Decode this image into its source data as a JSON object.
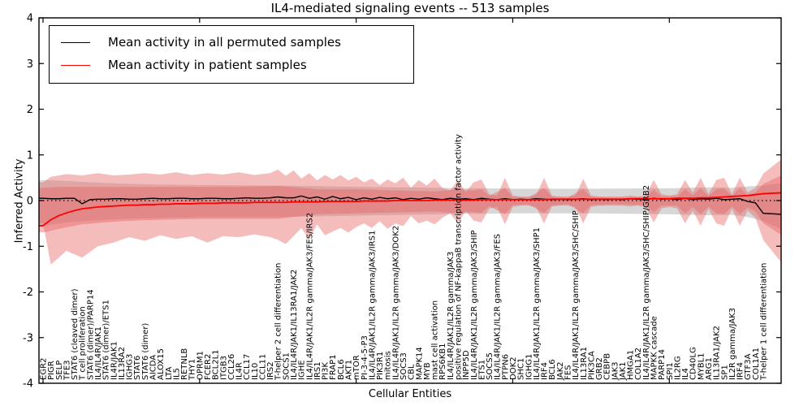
{
  "figure": {
    "title": "IL4-mediated signaling events -- 513 samples",
    "x_axis_label": "Cellular Entities",
    "y_axis_label": "Inferred Activity",
    "y_tick_labels": [
      "4",
      "3",
      "2",
      "1",
      "0",
      "-1",
      "-2",
      "-3",
      "-4"
    ],
    "legend": {
      "entries": [
        {
          "label": "Mean activity in all permuted samples",
          "color": "#000000"
        },
        {
          "label": "Mean activity in patient samples",
          "color": "#ff0000"
        }
      ]
    },
    "colors": {
      "permuted_line": "#000000",
      "patient_line": "#ff0000",
      "zero_line": "#000000",
      "red_band": "#e85f5f",
      "gray_band": "#b0b0b0",
      "axis": "#000000"
    }
  },
  "chart_data": {
    "type": "line",
    "title": "IL4-mediated signaling events -- 513 samples",
    "xlabel": "Cellular Entities",
    "ylabel": "Inferred Activity",
    "ylim": [
      -4,
      4
    ],
    "grid": false,
    "legend_position": "upper left",
    "zero_reference_line": 0,
    "categories": [
      "EGR2",
      "PIGR",
      "SELP",
      "TFE3",
      "STAT6 (cleaved dimer)",
      "T cell proliferation",
      "STAT6 (dimer)/PARP14",
      "IL4/IL4R/JAK1",
      "STAT6 (dimer)/ETS1",
      "IL4R/JAK1",
      "IL13RA2",
      "IGHG3",
      "STAT6",
      "STAT6 (dimer)",
      "AICDA",
      "ALOX15",
      "LTA",
      "IL5",
      "RETNLB",
      "THY1",
      "OPRM1",
      "FCER2",
      "BCL2L1",
      "ITGB3",
      "CCL26",
      "IL4R",
      "CCL17",
      "IL10",
      "CCL11",
      "IRS2",
      "T-helper 2 cell differentiation",
      "SOCS1",
      "IL4/IL4R/JAK1/IL13RA1/JAK2",
      "IGHE",
      "IL4/IL4R/JAK1/IL2R gamma/JAK3/FES/IRS2",
      "IRS1",
      "PI3K",
      "FRAP1",
      "BCL6",
      "AKT1",
      "mTOR",
      "PI-3-4-5-P3",
      "IL4/IL4R/JAK1/IL2R gamma/JAK3/IRS1",
      "PIK3R1",
      "mitosis",
      "IL4/IL4R/JAK1/IL2R gamma/JAK3/DOK2",
      "SOCS3",
      "CBL",
      "MAPK14",
      "MYB",
      "mast cell activation",
      "RPS6KB1",
      "IL4/IL4R/JAK1/IL2R gamma/JAK3",
      "positive regulation of NF-kappaB transcription factor activity",
      "INPP5D",
      "IL4/IL4R/JAK1/IL2R gamma/JAK3/SHIP",
      "ETS1",
      "SOCS5",
      "IL4/IL4R/JAK1/IL2R gamma/JAK3/FES",
      "PTPN6",
      "DOK2",
      "SHC1",
      "IGHG1",
      "IL4/IL4R/JAK1/IL2R gamma/JAK3/SHP1",
      "IRF4",
      "BCL6",
      "JAK2",
      "FES",
      "IL4/IL4R/JAK1/IL2R gamma/JAK3/SHC/SHIP",
      "IL13RA1",
      "PIK3CA",
      "GRB2",
      "CEBPB",
      "JAK3",
      "JAK1",
      "HMGA1",
      "COL1A2",
      "IL4/IL4R/JAK1/IL2R gamma/JAK3/SHC/SHIP/GRB2",
      "MAPKK cascade",
      "PARP14",
      "SPI1",
      "IL2RG",
      "IL4",
      "CD40LG",
      "MYBL1",
      "ARG1",
      "IL13RA1/JAK2",
      "SP1",
      "IL2R gamma/JAK3",
      "IRF4",
      "GTF3A",
      "COL1A1",
      "T-helper 1 cell differentiation"
    ],
    "series": [
      {
        "name": "Mean activity in all permuted samples",
        "color": "#000000",
        "values": [
          0.05,
          0.04,
          0.04,
          0.05,
          0.05,
          -0.07,
          0.02,
          0.03,
          0.03,
          0.04,
          0.04,
          0.03,
          0.03,
          0.04,
          0.05,
          0.04,
          0.04,
          0.05,
          0.05,
          0.04,
          0.04,
          0.05,
          0.05,
          0.04,
          0.04,
          0.05,
          0.06,
          0.05,
          0.05,
          0.06,
          0.08,
          0.06,
          0.06,
          0.1,
          0.05,
          0.08,
          0.03,
          0.09,
          0.04,
          0.07,
          0.02,
          0.06,
          0.03,
          0.07,
          0.04,
          0.06,
          0.02,
          0.05,
          0.03,
          0.06,
          0.04,
          0.02,
          0.05,
          0.03,
          0.04,
          0.02,
          0.05,
          0.03,
          0.02,
          0.04,
          0.02,
          0.03,
          0.02,
          0.04,
          0.03,
          0.02,
          0.03,
          0.02,
          0.03,
          0.04,
          0.02,
          0.03,
          0.02,
          0.03,
          0.02,
          0.04,
          0.03,
          0.02,
          0.05,
          0.03,
          0.04,
          0.02,
          0.05,
          0.02,
          0.04,
          0.03,
          0.05,
          0.02,
          0.03,
          0.04,
          -0.02,
          -0.05,
          -0.28,
          -0.3
        ]
      },
      {
        "name": "Mean activity in patient samples",
        "color": "#ff0000",
        "values": [
          -0.55,
          -0.42,
          -0.33,
          -0.27,
          -0.22,
          -0.18,
          -0.16,
          -0.14,
          -0.13,
          -0.12,
          -0.11,
          -0.1,
          -0.1,
          -0.09,
          -0.09,
          -0.08,
          -0.08,
          -0.07,
          -0.07,
          -0.07,
          -0.06,
          -0.06,
          -0.06,
          -0.05,
          -0.05,
          -0.05,
          -0.05,
          -0.04,
          -0.04,
          -0.04,
          -0.04,
          -0.04,
          -0.03,
          -0.03,
          -0.03,
          -0.03,
          -0.02,
          -0.02,
          -0.02,
          -0.02,
          -0.02,
          -0.01,
          -0.01,
          -0.01,
          -0.01,
          0.0,
          0.0,
          0.0,
          0.0,
          0.0,
          0.01,
          0.01,
          0.01,
          0.01,
          0.01,
          0.01,
          0.02,
          0.02,
          0.02,
          0.02,
          0.02,
          0.02,
          0.02,
          0.02,
          0.02,
          0.03,
          0.03,
          0.03,
          0.03,
          0.03,
          0.03,
          0.03,
          0.03,
          0.03,
          0.03,
          0.04,
          0.04,
          0.04,
          0.04,
          0.04,
          0.04,
          0.05,
          0.05,
          0.05,
          0.06,
          0.06,
          0.07,
          0.08,
          0.09,
          0.1,
          0.11,
          0.13,
          0.15,
          0.17
        ]
      }
    ],
    "bands": {
      "note": "keyframes are [index, upper, lower] in data units; last index 93 is the right plot edge",
      "red_outer_keyframes": [
        [
          0,
          0.4,
          -0.5
        ],
        [
          1,
          0.52,
          -1.4
        ],
        [
          3,
          0.58,
          -1.1
        ],
        [
          5,
          0.55,
          -1.25
        ],
        [
          7,
          0.6,
          -1.0
        ],
        [
          9,
          0.55,
          -0.92
        ],
        [
          11,
          0.57,
          -0.8
        ],
        [
          13,
          0.6,
          -0.88
        ],
        [
          15,
          0.57,
          -0.76
        ],
        [
          17,
          0.62,
          -0.84
        ],
        [
          19,
          0.56,
          -0.78
        ],
        [
          21,
          0.6,
          -0.92
        ],
        [
          23,
          0.57,
          -0.78
        ],
        [
          25,
          0.62,
          -0.8
        ],
        [
          27,
          0.56,
          -0.74
        ],
        [
          29,
          0.6,
          -0.8
        ],
        [
          30,
          0.68,
          -0.86
        ],
        [
          31,
          0.54,
          -0.95
        ],
        [
          32,
          0.66,
          -0.78
        ],
        [
          33,
          0.48,
          -0.6
        ],
        [
          34,
          0.6,
          -0.85
        ],
        [
          35,
          0.44,
          -0.52
        ],
        [
          36,
          0.56,
          -0.76
        ],
        [
          37,
          0.46,
          -0.68
        ],
        [
          38,
          0.56,
          -0.6
        ],
        [
          39,
          0.44,
          -0.7
        ],
        [
          40,
          0.52,
          -0.58
        ],
        [
          41,
          0.4,
          -0.5
        ],
        [
          42,
          0.48,
          -0.6
        ],
        [
          43,
          0.34,
          -0.45
        ],
        [
          44,
          0.46,
          -0.62
        ],
        [
          45,
          0.38,
          -0.5
        ],
        [
          46,
          0.5,
          -0.56
        ],
        [
          47,
          0.28,
          -0.34
        ],
        [
          48,
          0.45,
          -0.5
        ],
        [
          49,
          0.33,
          -0.44
        ],
        [
          50,
          0.48,
          -0.52
        ],
        [
          51,
          0.28,
          -0.38
        ],
        [
          52,
          0.22,
          -0.28
        ],
        [
          53,
          0.45,
          -0.5
        ],
        [
          54,
          0.18,
          -0.22
        ],
        [
          55,
          0.4,
          -0.44
        ],
        [
          56,
          0.46,
          -0.48
        ],
        [
          57,
          0.14,
          -0.17
        ],
        [
          58,
          0.11,
          -0.14
        ],
        [
          59,
          0.5,
          -0.52
        ],
        [
          60,
          0.11,
          -0.14
        ],
        [
          61,
          0.09,
          -0.11
        ],
        [
          62,
          0.09,
          -0.11
        ],
        [
          63,
          0.12,
          -0.14
        ],
        [
          64,
          0.5,
          -0.5
        ],
        [
          65,
          0.11,
          -0.13
        ],
        [
          66,
          0.09,
          -0.11
        ],
        [
          67,
          0.09,
          -0.11
        ],
        [
          68,
          0.11,
          -0.13
        ],
        [
          69,
          0.48,
          -0.5
        ],
        [
          70,
          0.11,
          -0.14
        ],
        [
          71,
          0.09,
          -0.11
        ],
        [
          72,
          0.09,
          -0.11
        ],
        [
          73,
          0.09,
          -0.11
        ],
        [
          74,
          0.09,
          -0.11
        ],
        [
          75,
          0.11,
          -0.13
        ],
        [
          76,
          0.09,
          -0.11
        ],
        [
          77,
          0.11,
          -0.14
        ],
        [
          78,
          0.45,
          -0.48
        ],
        [
          79,
          0.14,
          -0.17
        ],
        [
          80,
          0.11,
          -0.14
        ],
        [
          81,
          0.14,
          -0.17
        ],
        [
          82,
          0.45,
          -0.5
        ],
        [
          83,
          0.18,
          -0.22
        ],
        [
          84,
          0.5,
          -0.55
        ],
        [
          85,
          0.14,
          -0.18
        ],
        [
          86,
          0.45,
          -0.5
        ],
        [
          87,
          0.5,
          -0.55
        ],
        [
          88,
          0.14,
          -0.18
        ],
        [
          89,
          0.5,
          -0.55
        ],
        [
          90,
          0.18,
          -0.22
        ],
        [
          91,
          0.28,
          -0.38
        ],
        [
          93,
          0.9,
          -1.35
        ]
      ],
      "red_inner_keyframes": [
        [
          0,
          0.28,
          -0.7
        ],
        [
          2,
          0.3,
          -0.62
        ],
        [
          5,
          0.3,
          -0.52
        ],
        [
          10,
          0.3,
          -0.45
        ],
        [
          15,
          0.3,
          -0.42
        ],
        [
          20,
          0.3,
          -0.4
        ],
        [
          25,
          0.3,
          -0.4
        ],
        [
          30,
          0.32,
          -0.4
        ],
        [
          33,
          0.28,
          -0.34
        ],
        [
          35,
          0.25,
          -0.3
        ],
        [
          40,
          0.25,
          -0.28
        ],
        [
          45,
          0.22,
          -0.26
        ],
        [
          50,
          0.2,
          -0.24
        ],
        [
          53,
          0.25,
          -0.28
        ],
        [
          55,
          0.22,
          -0.25
        ],
        [
          56,
          0.25,
          -0.27
        ],
        [
          57,
          0.1,
          -0.12
        ],
        [
          59,
          0.28,
          -0.3
        ],
        [
          60,
          0.08,
          -0.1
        ],
        [
          62,
          0.06,
          -0.08
        ],
        [
          64,
          0.28,
          -0.28
        ],
        [
          65,
          0.08,
          -0.1
        ],
        [
          67,
          0.06,
          -0.08
        ],
        [
          69,
          0.26,
          -0.28
        ],
        [
          70,
          0.08,
          -0.1
        ],
        [
          73,
          0.06,
          -0.08
        ],
        [
          75,
          0.07,
          -0.09
        ],
        [
          77,
          0.08,
          -0.1
        ],
        [
          78,
          0.24,
          -0.26
        ],
        [
          79,
          0.09,
          -0.11
        ],
        [
          81,
          0.09,
          -0.11
        ],
        [
          82,
          0.25,
          -0.28
        ],
        [
          83,
          0.12,
          -0.14
        ],
        [
          84,
          0.27,
          -0.3
        ],
        [
          85,
          0.1,
          -0.13
        ],
        [
          86,
          0.25,
          -0.28
        ],
        [
          87,
          0.27,
          -0.3
        ],
        [
          88,
          0.1,
          -0.13
        ],
        [
          89,
          0.28,
          -0.3
        ],
        [
          90,
          0.12,
          -0.15
        ],
        [
          91,
          0.18,
          -0.24
        ],
        [
          93,
          0.55,
          -0.75
        ]
      ],
      "gray_keyframes": [
        [
          0,
          0.45,
          -0.55
        ],
        [
          3,
          0.43,
          -0.48
        ],
        [
          6,
          0.4,
          -0.44
        ],
        [
          10,
          0.37,
          -0.4
        ],
        [
          15,
          0.35,
          -0.38
        ],
        [
          20,
          0.34,
          -0.36
        ],
        [
          30,
          0.33,
          -0.36
        ],
        [
          40,
          0.3,
          -0.33
        ],
        [
          50,
          0.28,
          -0.3
        ],
        [
          60,
          0.26,
          -0.28
        ],
        [
          70,
          0.26,
          -0.28
        ],
        [
          80,
          0.27,
          -0.3
        ],
        [
          85,
          0.29,
          -0.32
        ],
        [
          88,
          0.28,
          -0.31
        ],
        [
          90,
          0.31,
          -0.36
        ],
        [
          92,
          0.33,
          -0.45
        ],
        [
          93,
          0.38,
          -0.62
        ]
      ]
    }
  }
}
